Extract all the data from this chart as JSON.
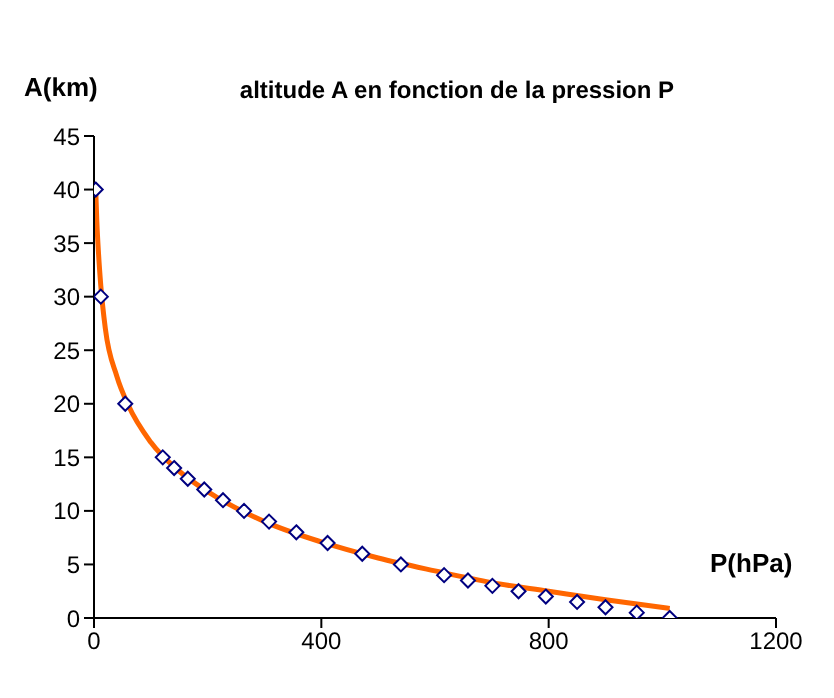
{
  "chart_data": {
    "type": "scatter",
    "title": "altitude A en fonction de la pression P",
    "xlabel": "P(hPa)",
    "ylabel": "A(km)",
    "xlim": [
      0,
      1200
    ],
    "xticks": [
      0,
      400,
      800,
      1200
    ],
    "ylim": [
      0,
      45
    ],
    "yticks": [
      0,
      5,
      10,
      15,
      20,
      25,
      30,
      35,
      40,
      45
    ],
    "grid": false,
    "legend": false,
    "marker": "diamond",
    "series": [
      {
        "color": "#000080",
        "x": [
          3,
          12,
          55,
          121,
          141,
          165,
          194,
          227,
          264,
          308,
          356,
          411,
          472,
          540,
          616,
          658,
          701,
          747,
          795,
          850,
          900,
          955,
          1013
        ],
        "values": [
          40,
          30,
          20,
          15,
          14,
          13,
          12,
          11,
          10,
          9,
          8,
          7,
          6,
          5,
          4,
          3.5,
          3,
          2.5,
          2,
          1.5,
          1,
          0.5,
          0
        ]
      },
      {
        "type": "line",
        "color": "#ff6600",
        "marker": "none",
        "x": [
          3,
          5,
          8,
          12,
          20,
          40,
          60,
          100,
          150,
          200,
          300,
          400,
          500,
          600,
          700,
          800,
          900,
          1013
        ],
        "values": [
          40,
          37,
          34,
          31,
          27,
          22.6,
          19.9,
          16.4,
          13.7,
          11.8,
          9,
          7.1,
          5.6,
          4.4,
          3.3,
          2.5,
          1.7,
          0.9
        ]
      }
    ]
  }
}
